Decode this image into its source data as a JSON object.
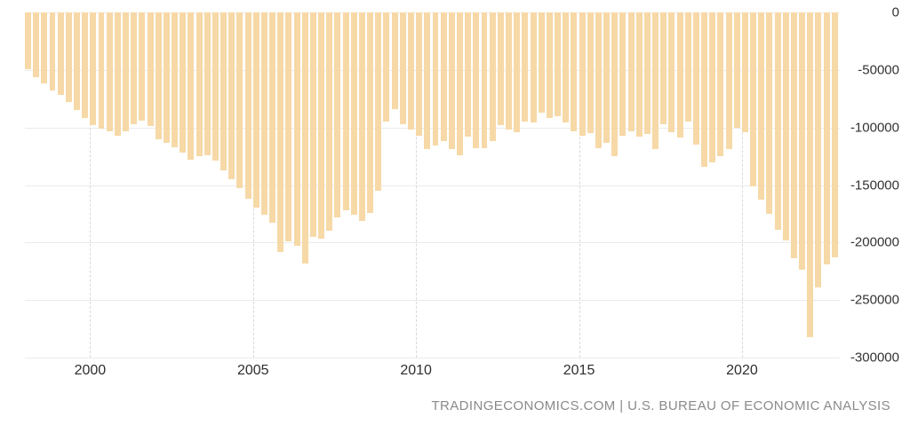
{
  "chart_data": {
    "type": "bar",
    "title": "",
    "x": [
      "1998 Q1",
      "1998 Q2",
      "1998 Q3",
      "1998 Q4",
      "1999 Q1",
      "1999 Q2",
      "1999 Q3",
      "1999 Q4",
      "2000 Q1",
      "2000 Q2",
      "2000 Q3",
      "2000 Q4",
      "2001 Q1",
      "2001 Q2",
      "2001 Q3",
      "2001 Q4",
      "2002 Q1",
      "2002 Q2",
      "2002 Q3",
      "2002 Q4",
      "2003 Q1",
      "2003 Q2",
      "2003 Q3",
      "2003 Q4",
      "2004 Q1",
      "2004 Q2",
      "2004 Q3",
      "2004 Q4",
      "2005 Q1",
      "2005 Q2",
      "2005 Q3",
      "2005 Q4",
      "2006 Q1",
      "2006 Q2",
      "2006 Q3",
      "2006 Q4",
      "2007 Q1",
      "2007 Q2",
      "2007 Q3",
      "2007 Q4",
      "2008 Q1",
      "2008 Q2",
      "2008 Q3",
      "2008 Q4",
      "2009 Q1",
      "2009 Q2",
      "2009 Q3",
      "2009 Q4",
      "2010 Q1",
      "2010 Q2",
      "2010 Q3",
      "2010 Q4",
      "2011 Q1",
      "2011 Q2",
      "2011 Q3",
      "2011 Q4",
      "2012 Q1",
      "2012 Q2",
      "2012 Q3",
      "2012 Q4",
      "2013 Q1",
      "2013 Q2",
      "2013 Q3",
      "2013 Q4",
      "2014 Q1",
      "2014 Q2",
      "2014 Q3",
      "2014 Q4",
      "2015 Q1",
      "2015 Q2",
      "2015 Q3",
      "2015 Q4",
      "2016 Q1",
      "2016 Q2",
      "2016 Q3",
      "2016 Q4",
      "2017 Q1",
      "2017 Q2",
      "2017 Q3",
      "2017 Q4",
      "2018 Q1",
      "2018 Q2",
      "2018 Q3",
      "2018 Q4",
      "2019 Q1",
      "2019 Q2",
      "2019 Q3",
      "2019 Q4",
      "2020 Q1",
      "2020 Q2",
      "2020 Q3",
      "2020 Q4",
      "2021 Q1",
      "2021 Q2",
      "2021 Q3",
      "2021 Q4",
      "2022 Q1",
      "2022 Q2",
      "2022 Q3",
      "2022 Q4"
    ],
    "values": [
      -49000,
      -56000,
      -62000,
      -68000,
      -72000,
      -78000,
      -85000,
      -92000,
      -98000,
      -101000,
      -103000,
      -107000,
      -103000,
      -97000,
      -94000,
      -99000,
      -110000,
      -113000,
      -117000,
      -122000,
      -128000,
      -125000,
      -124000,
      -129000,
      -137000,
      -145000,
      -153000,
      -162000,
      -170000,
      -176000,
      -183000,
      -208000,
      -199000,
      -203000,
      -218000,
      -195000,
      -197000,
      -190000,
      -178000,
      -172000,
      -176000,
      -181000,
      -174000,
      -155000,
      -95000,
      -84000,
      -97000,
      -102000,
      -107000,
      -119000,
      -116000,
      -112000,
      -119000,
      -124000,
      -108000,
      -118000,
      -118000,
      -112000,
      -98000,
      -102000,
      -104000,
      -95000,
      -96000,
      -87000,
      -92000,
      -90000,
      -96000,
      -103000,
      -107000,
      -105000,
      -118000,
      -113000,
      -125000,
      -107000,
      -103000,
      -108000,
      -106000,
      -119000,
      -97000,
      -104000,
      -109000,
      -95000,
      -115000,
      -134000,
      -130000,
      -125000,
      -119000,
      -100000,
      -104000,
      -151000,
      -163000,
      -175000,
      -189000,
      -198000,
      -214000,
      -224000,
      -282000,
      -239000,
      -219000,
      -213000
    ],
    "ylim": [
      -300000,
      0
    ],
    "y_ticks": [
      0,
      -50000,
      -100000,
      -150000,
      -200000,
      -250000,
      -300000
    ],
    "x_ticks": [
      {
        "label": "2000",
        "index": 8
      },
      {
        "label": "2005",
        "index": 28
      },
      {
        "label": "2010",
        "index": 48
      },
      {
        "label": "2015",
        "index": 68
      },
      {
        "label": "2020",
        "index": 88
      }
    ],
    "grid": true,
    "legend_position": "none",
    "xlabel": "",
    "ylabel": ""
  },
  "footer": {
    "text": "TRADINGECONOMICS.COM | U.S. BUREAU OF ECONOMIC ANALYSIS"
  },
  "colors": {
    "bar": "#f6d9a7",
    "h_grid": "#ebebeb",
    "v_grid": "#d9d9d9",
    "axis_text": "#333333",
    "footer_text": "#8a8a8a",
    "background": "#ffffff"
  }
}
